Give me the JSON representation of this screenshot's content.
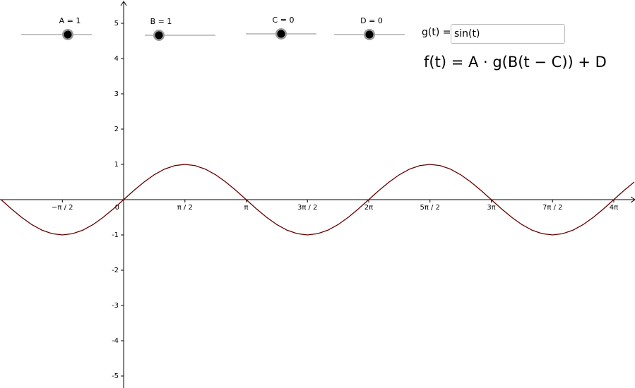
{
  "sliders": [
    {
      "label": "A = 1"
    },
    {
      "label": "B = 1"
    },
    {
      "label": "C = 0"
    },
    {
      "label": "D = 0"
    }
  ],
  "input": {
    "label": "g(t) =",
    "value": "sin(t)"
  },
  "formula": "f(t) = A · g(B(t − C)) + D",
  "chart_data": {
    "type": "line",
    "xlim": [
      -3.17,
      13.11
    ],
    "ylim": [
      -5.34,
      5.66
    ],
    "xticks": [
      {
        "value": -1.571,
        "label": "−π / 2"
      },
      0,
      {
        "value": 1.571,
        "label": "π / 2"
      },
      {
        "value": 3.142,
        "label": "π"
      },
      {
        "value": 4.712,
        "label": "3π / 2"
      },
      {
        "value": 6.283,
        "label": "2π"
      },
      {
        "value": 7.854,
        "label": "5π / 2"
      },
      {
        "value": 9.425,
        "label": "3π"
      },
      {
        "value": 10.996,
        "label": "7π / 2"
      },
      {
        "value": 12.566,
        "label": "4π"
      }
    ],
    "yticks": [
      -5,
      -4,
      -3,
      -2,
      -1,
      1,
      2,
      3,
      4,
      5
    ],
    "series": [
      {
        "name": "f",
        "color": "#660000",
        "x": [
          -3.142,
          -2.88,
          -2.618,
          -2.356,
          -2.094,
          -1.833,
          -1.571,
          -1.309,
          -1.047,
          -0.785,
          -0.524,
          -0.262,
          0,
          0.262,
          0.524,
          0.785,
          1.047,
          1.309,
          1.571,
          1.833,
          2.094,
          2.356,
          2.618,
          2.88,
          3.142,
          3.403,
          3.665,
          3.927,
          4.189,
          4.451,
          4.712,
          4.974,
          5.236,
          5.498,
          5.76,
          6.021,
          6.283,
          6.545,
          6.807,
          7.069,
          7.33,
          7.592,
          7.854,
          8.116,
          8.378,
          8.639,
          8.901,
          9.163,
          9.425,
          9.687,
          9.948,
          10.21,
          10.472,
          10.734,
          10.996,
          11.257,
          11.519,
          11.781,
          12.043,
          12.305,
          12.566,
          12.828,
          13.09
        ],
        "values": [
          0,
          -0.259,
          -0.5,
          -0.707,
          -0.866,
          -0.966,
          -1,
          -0.966,
          -0.866,
          -0.707,
          -0.5,
          -0.259,
          0,
          0.259,
          0.5,
          0.707,
          0.866,
          0.966,
          1,
          0.966,
          0.866,
          0.707,
          0.5,
          0.259,
          0,
          -0.259,
          -0.5,
          -0.707,
          -0.866,
          -0.966,
          -1,
          -0.966,
          -0.866,
          -0.707,
          -0.5,
          -0.259,
          0,
          0.259,
          0.5,
          0.707,
          0.866,
          0.966,
          1,
          0.966,
          0.866,
          0.707,
          0.5,
          0.259,
          0,
          -0.259,
          -0.5,
          -0.707,
          -0.866,
          -0.966,
          -1,
          -0.966,
          -0.866,
          -0.707,
          -0.5,
          -0.259,
          0,
          0.259,
          0.5
        ]
      }
    ]
  }
}
